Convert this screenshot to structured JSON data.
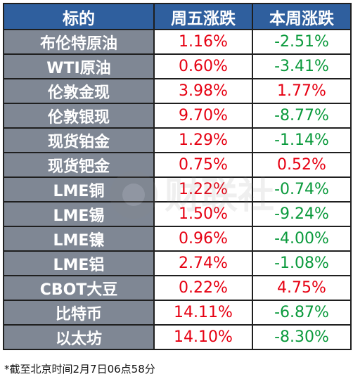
{
  "table": {
    "headers": [
      "标的",
      "周五涨跌",
      "本周涨跌"
    ],
    "rows": [
      {
        "name": "布伦特原油",
        "friday": "1.16%",
        "week": "-2.51%"
      },
      {
        "name": "WTI原油",
        "friday": "0.60%",
        "week": "-3.41%"
      },
      {
        "name": "伦敦金现",
        "friday": "3.98%",
        "week": "1.77%"
      },
      {
        "name": "伦敦银现",
        "friday": "9.70%",
        "week": "-8.77%"
      },
      {
        "name": "现货铂金",
        "friday": "1.29%",
        "week": "-1.14%"
      },
      {
        "name": "现货钯金",
        "friday": "0.75%",
        "week": "0.52%"
      },
      {
        "name": "LME铜",
        "friday": "1.22%",
        "week": "-0.74%"
      },
      {
        "name": "LME锡",
        "friday": "1.50%",
        "week": "-9.24%"
      },
      {
        "name": "LME镍",
        "friday": "0.96%",
        "week": "-4.00%"
      },
      {
        "name": "LME铝",
        "friday": "2.74%",
        "week": "-1.08%"
      },
      {
        "name": "CBOT大豆",
        "friday": "0.22%",
        "week": "4.75%"
      },
      {
        "name": "比特币",
        "friday": "14.11%",
        "week": "-6.87%"
      },
      {
        "name": "以太坊",
        "friday": "14.10%",
        "week": "-8.30%"
      }
    ]
  },
  "colors": {
    "header_bg": "#2f5f9e",
    "name_bg": "#7f8794",
    "up": "#e60012",
    "down": "#0a9a3c"
  },
  "watermark": {
    "brand": "财联社"
  },
  "footnote": "*截至北京时间2月7日06点58分"
}
